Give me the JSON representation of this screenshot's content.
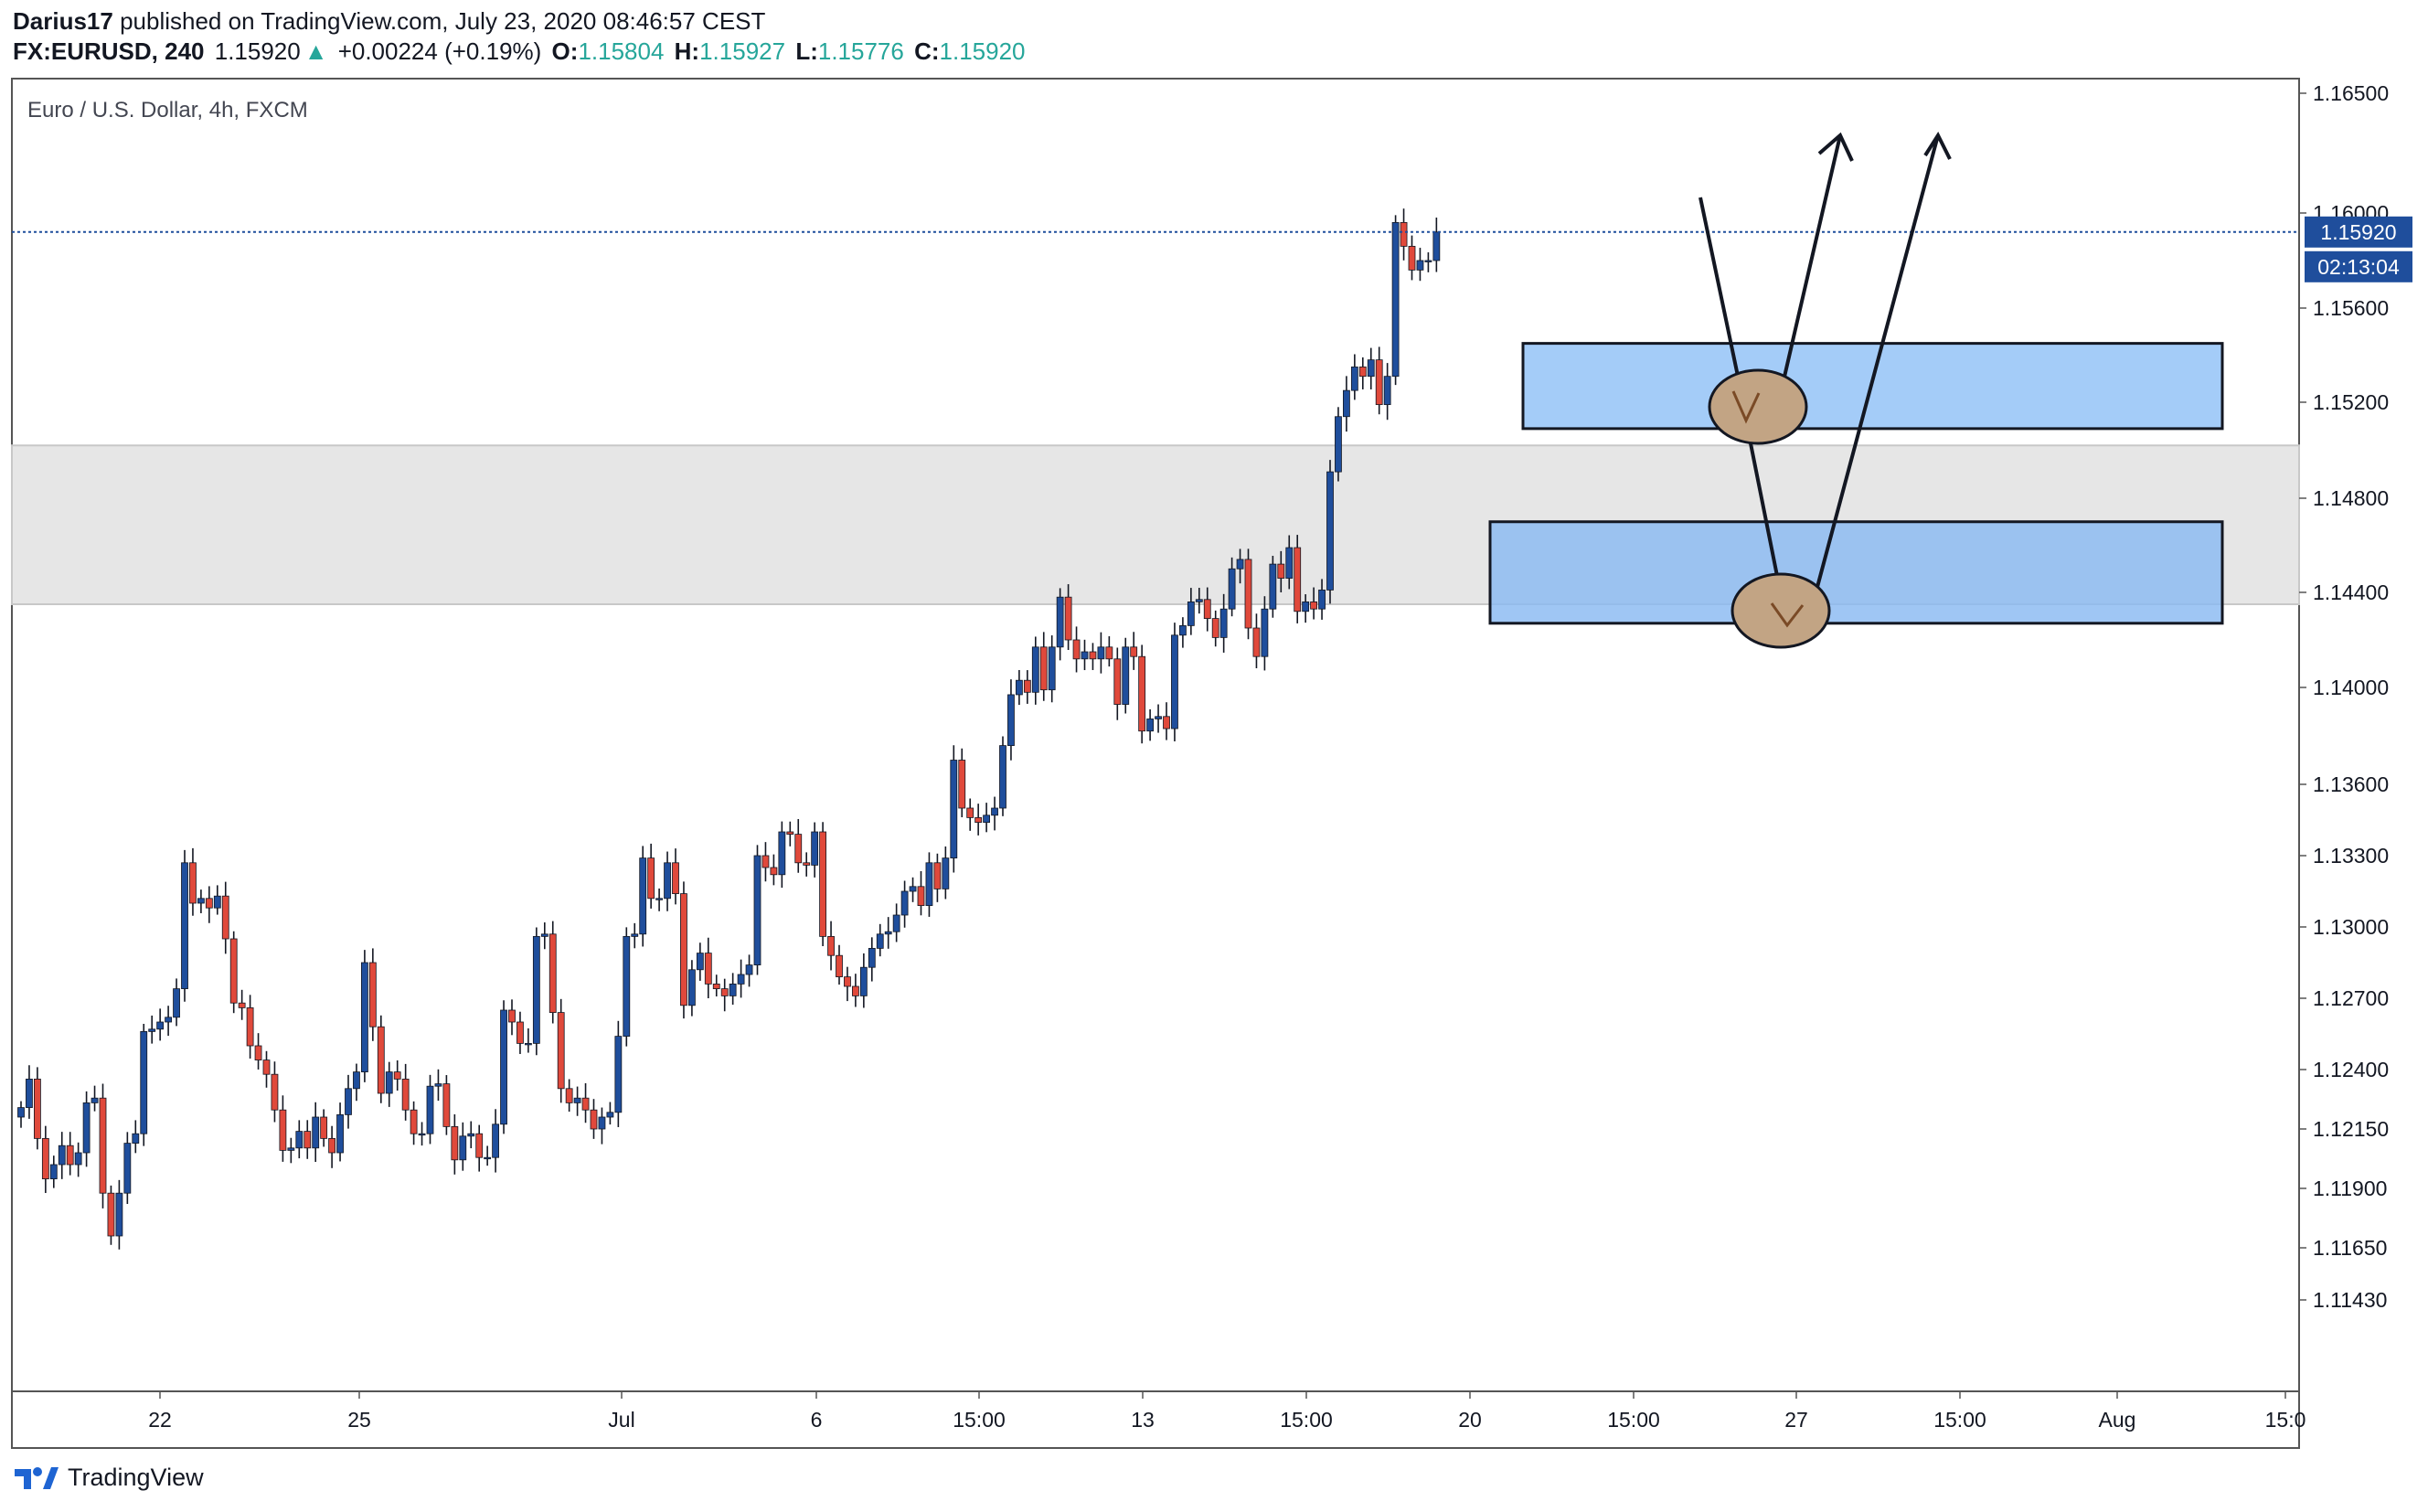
{
  "header": {
    "author": "Darius17",
    "published": "published on TradingView.com, July 23, 2020 08:46:57 CEST",
    "symbol": "FX:EURUSD, 240",
    "last_price": "1.15920",
    "change_arrow": "▲",
    "change": "+0.00224 (+0.19%)",
    "open_label": "O:",
    "open": "1.15804",
    "high_label": "H:",
    "high": "1.15927",
    "low_label": "L:",
    "low": "1.15776",
    "close_label": "C:",
    "close": "1.15920"
  },
  "footer": {
    "brand": "TradingView",
    "icon": "tradingview-logo-icon"
  },
  "colors": {
    "up": "#1f4e9c",
    "down": "#e0493b",
    "wick": "#131722",
    "zone_fill": "#90c1f7",
    "resistance_band": "#e6e6e6",
    "price_line": "#1f4e9c",
    "marker_fill": "#c2a484",
    "marker_arrow": "#7a4a26"
  },
  "chart_data": {
    "type": "candlestick",
    "title": "Euro / U.S. Dollar, 4h, FXCM",
    "y_ticks": [
      "1.16500",
      "1.16000",
      "1.15600",
      "1.15200",
      "1.14800",
      "1.14400",
      "1.14000",
      "1.13600",
      "1.13300",
      "1.13000",
      "1.12700",
      "1.12400",
      "1.12150",
      "1.11900",
      "1.11650",
      "1.11430"
    ],
    "x_ticks": [
      "22",
      "25",
      "Jul",
      "6",
      "15:00",
      "13",
      "15:00",
      "20",
      "15:00",
      "27",
      "15:00",
      "Aug",
      "15:0"
    ],
    "ylim": [
      1.1131,
      1.1668
    ],
    "last_price_label": "1.15920",
    "countdown_label": "02:13:04",
    "closes": [
      1.1224,
      1.1236,
      1.1211,
      1.1194,
      1.12,
      1.1208,
      1.12,
      1.1205,
      1.1226,
      1.1228,
      1.1188,
      1.117,
      1.1188,
      1.1209,
      1.1213,
      1.1256,
      1.1257,
      1.126,
      1.1262,
      1.1274,
      1.1327,
      1.131,
      1.1312,
      1.1308,
      1.1313,
      1.1295,
      1.1268,
      1.1266,
      1.125,
      1.1244,
      1.1238,
      1.1223,
      1.1206,
      1.1207,
      1.1214,
      1.1207,
      1.122,
      1.1211,
      1.1205,
      1.1221,
      1.1232,
      1.1239,
      1.1285,
      1.1258,
      1.123,
      1.1239,
      1.1236,
      1.1223,
      1.1213,
      1.1213,
      1.1233,
      1.1234,
      1.1216,
      1.1202,
      1.1212,
      1.1213,
      1.1203,
      1.1203,
      1.1217,
      1.1265,
      1.126,
      1.1251,
      1.1251,
      1.1296,
      1.1297,
      1.1264,
      1.1232,
      1.1226,
      1.1228,
      1.1223,
      1.1215,
      1.122,
      1.1222,
      1.1254,
      1.1296,
      1.1297,
      1.1329,
      1.1312,
      1.1312,
      1.1327,
      1.1314,
      1.1267,
      1.1282,
      1.1289,
      1.1276,
      1.1274,
      1.1271,
      1.1276,
      1.128,
      1.1284,
      1.133,
      1.1325,
      1.1322,
      1.134,
      1.1339,
      1.1327,
      1.1326,
      1.134,
      1.1296,
      1.1288,
      1.1279,
      1.1275,
      1.1271,
      1.1283,
      1.1291,
      1.1297,
      1.1298,
      1.1305,
      1.1315,
      1.1317,
      1.1309,
      1.1327,
      1.1316,
      1.1329,
      1.137,
      1.135,
      1.1346,
      1.1344,
      1.1347,
      1.135,
      1.1376,
      1.1397,
      1.1403,
      1.1398,
      1.1417,
      1.1399,
      1.1417,
      1.1438,
      1.142,
      1.1412,
      1.1415,
      1.1412,
      1.1417,
      1.1412,
      1.1393,
      1.1417,
      1.1413,
      1.1382,
      1.1387,
      1.1388,
      1.1383,
      1.1422,
      1.1426,
      1.1436,
      1.1437,
      1.1429,
      1.1421,
      1.1433,
      1.145,
      1.1454,
      1.1425,
      1.1413,
      1.1433,
      1.1452,
      1.1446,
      1.1459,
      1.1432,
      1.1436,
      1.1433,
      1.1441,
      1.1491,
      1.1514,
      1.1525,
      1.1535,
      1.1531,
      1.1538,
      1.1519,
      1.1531,
      1.1596,
      1.1586,
      1.1576,
      1.158,
      1.158,
      1.1592
    ],
    "overlays": {
      "resistance_band": [
        1.1435,
        1.1502
      ],
      "upper_zone": [
        1.1509,
        1.1545
      ],
      "lower_zone": [
        1.1427,
        1.147
      ]
    }
  }
}
